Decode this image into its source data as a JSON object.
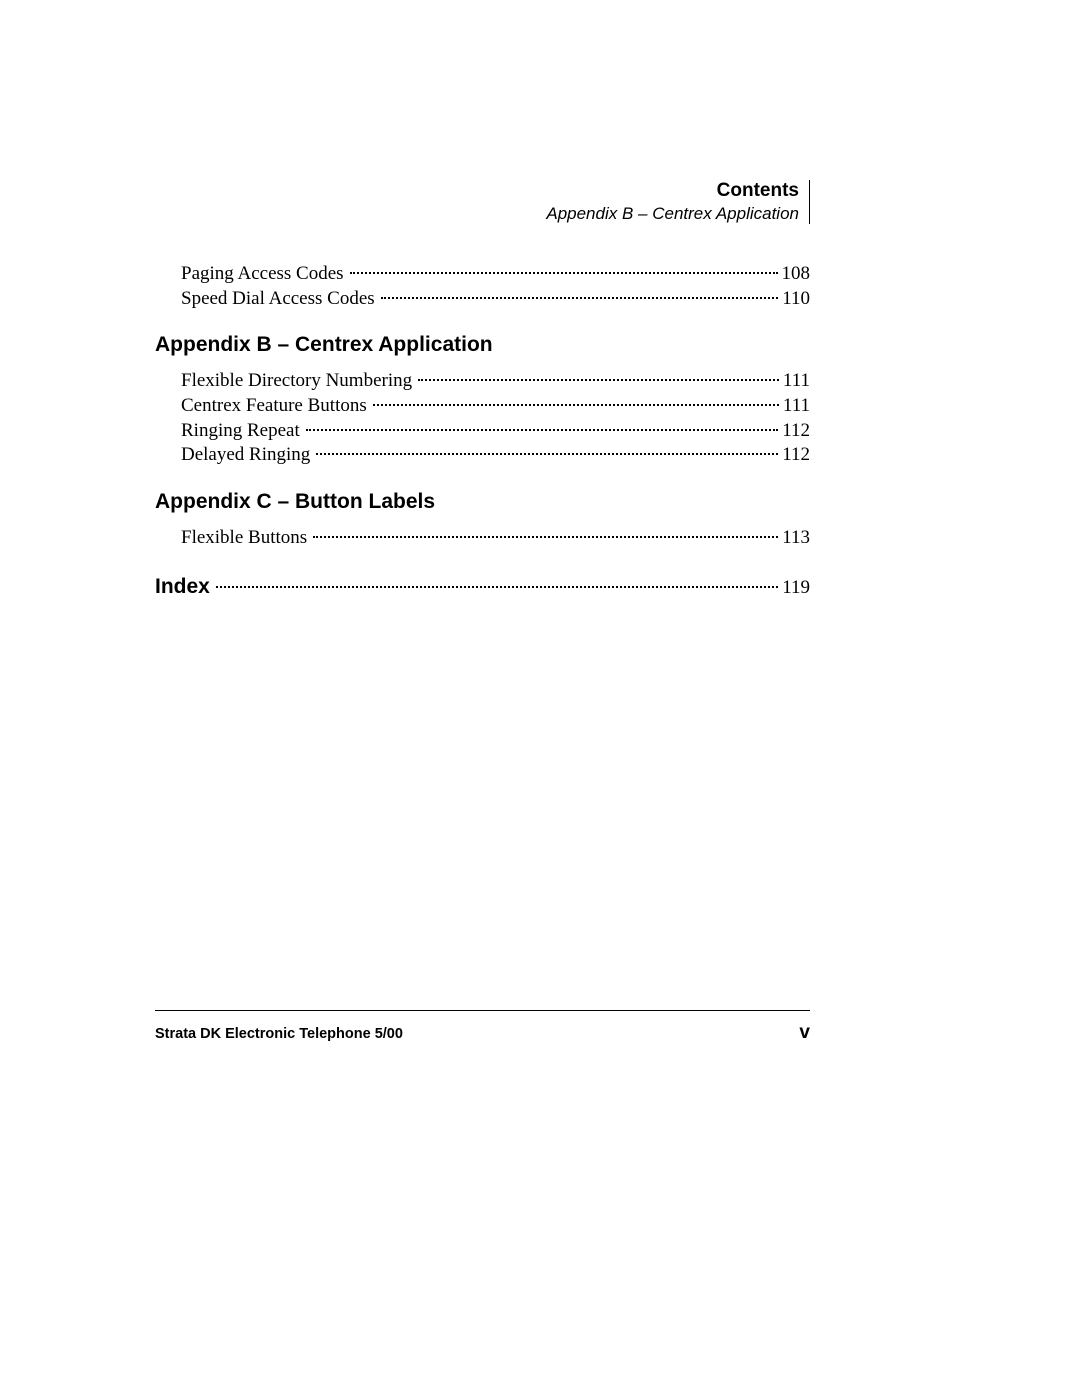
{
  "header": {
    "title": "Contents",
    "subtitle": "Appendix B – Centrex Application"
  },
  "preEntries": [
    {
      "label": "Paging Access Codes",
      "page": "108"
    },
    {
      "label": "Speed Dial Access Codes",
      "page": "110"
    }
  ],
  "sections": [
    {
      "heading": "Appendix B – Centrex Application",
      "entries": [
        {
          "label": "Flexible Directory Numbering",
          "page": "111"
        },
        {
          "label": "Centrex Feature Buttons",
          "page": "111"
        },
        {
          "label": "Ringing Repeat",
          "page": "112"
        },
        {
          "label": "Delayed Ringing",
          "page": "112"
        }
      ]
    },
    {
      "heading": "Appendix C – Button Labels",
      "entries": [
        {
          "label": "Flexible Buttons",
          "page": "113"
        }
      ]
    }
  ],
  "indexEntry": {
    "label": "Index",
    "page": "119"
  },
  "footer": {
    "left": "Strata DK Electronic Telephone   5/00",
    "right": "v"
  },
  "colors": {
    "background": "#ffffff",
    "text": "#000000",
    "rule": "#000000"
  },
  "typography": {
    "heading_font": "Arial",
    "heading_size_pt": 16,
    "body_font": "Times New Roman",
    "body_size_pt": 14,
    "footer_left_size_pt": 11,
    "footer_right_size_pt": 14
  }
}
